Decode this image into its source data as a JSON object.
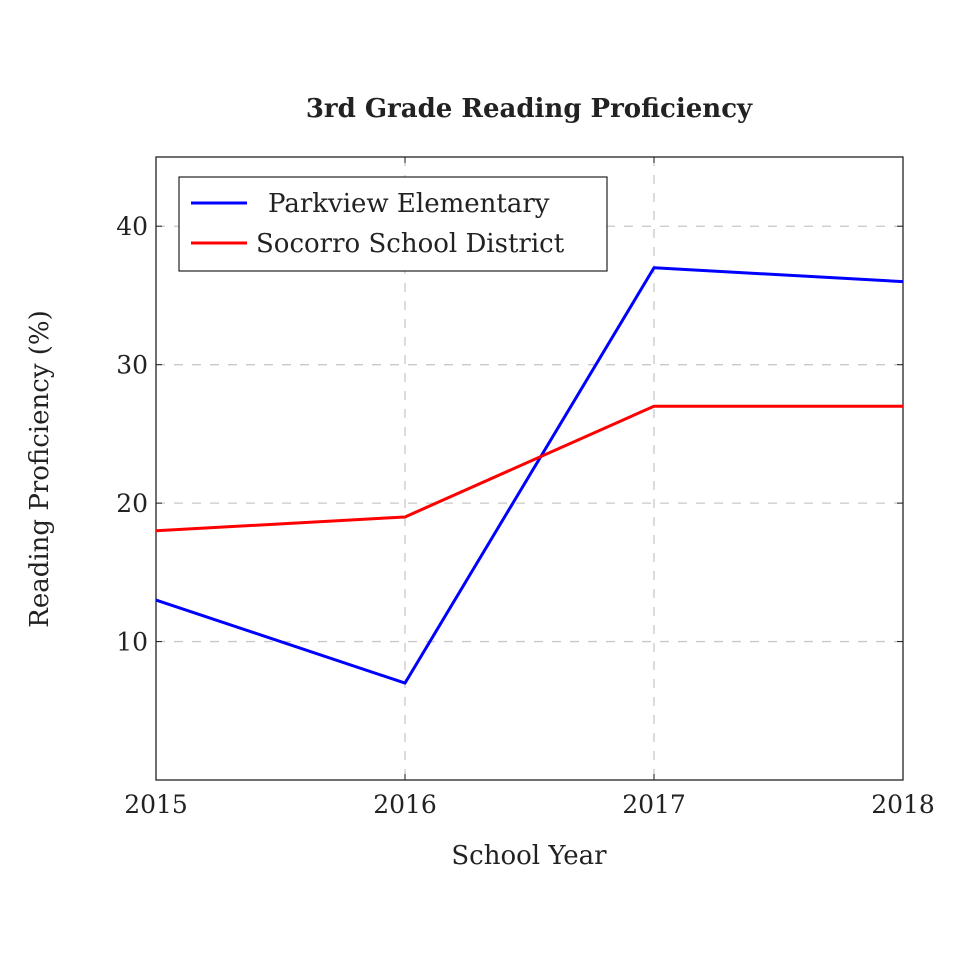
{
  "chart_data": {
    "type": "line",
    "title": "3rd Grade Reading Proficiency",
    "xlabel": "School Year",
    "ylabel": "Reading Proficiency (%)",
    "x": [
      2015,
      2016,
      2017,
      2018
    ],
    "xticks": [
      "2015",
      "2016",
      "2017",
      "2018"
    ],
    "yticks": [
      "10",
      "20",
      "30",
      "40"
    ],
    "ytick_values": [
      10,
      20,
      30,
      40
    ],
    "xlim": [
      2015,
      2018
    ],
    "ylim": [
      0,
      45
    ],
    "grid": true,
    "legend_position": "top-left",
    "series": [
      {
        "name": "Parkview Elementary",
        "color": "#0000ff",
        "values": [
          13,
          7,
          37,
          36
        ]
      },
      {
        "name": "Socorro School District",
        "color": "#ff0000",
        "values": [
          18,
          19,
          27,
          27
        ]
      }
    ]
  }
}
